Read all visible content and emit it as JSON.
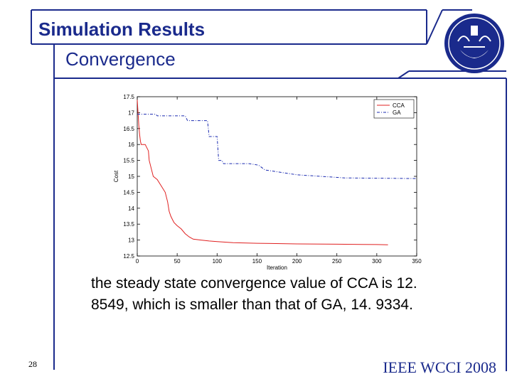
{
  "slide": {
    "title": "Simulation Results",
    "subtitle": "Convergence",
    "caption": "the steady state convergence value of CCA is 12. 8549, which is smaller than that of GA, 14. 9334.",
    "slide_number": "28",
    "footer": "IEEE WCCI 2008",
    "logo_icon": "university-of-tehran-logo-icon"
  },
  "colors": {
    "frame": "#1a2a8c",
    "cca": "#e02020",
    "ga": "#1a2ab0"
  },
  "chart_data": {
    "type": "line",
    "xlabel": "Iteration",
    "ylabel": "Cost",
    "xlim": [
      0,
      350
    ],
    "ylim": [
      12.5,
      17.5
    ],
    "xticks": [
      "0",
      "50",
      "100",
      "150",
      "200",
      "250",
      "300",
      "350"
    ],
    "yticks": [
      "12.5",
      "13",
      "13.5",
      "14",
      "14.5",
      "15",
      "15.5",
      "16",
      "16.5",
      "17",
      "17.5"
    ],
    "legend_position": "top-right",
    "grid": false,
    "series": [
      {
        "name": "CCA",
        "style": "solid",
        "color": "#e02020",
        "x": [
          0,
          1,
          2,
          3,
          4,
          5,
          10,
          14,
          15,
          20,
          25,
          30,
          35,
          38,
          40,
          42,
          44,
          46,
          50,
          55,
          60,
          65,
          70,
          80,
          90,
          100,
          120,
          150,
          200,
          250,
          300,
          314
        ],
        "y": [
          17.4,
          17.0,
          16.6,
          16.3,
          16.1,
          16.0,
          16.0,
          15.8,
          15.5,
          15.0,
          14.9,
          14.7,
          14.5,
          14.2,
          13.9,
          13.75,
          13.65,
          13.55,
          13.45,
          13.35,
          13.2,
          13.1,
          13.03,
          13.0,
          12.97,
          12.95,
          12.92,
          12.9,
          12.88,
          12.87,
          12.86,
          12.85
        ]
      },
      {
        "name": "GA",
        "style": "dash-dot",
        "color": "#1a2ab0",
        "x": [
          0,
          23,
          25,
          60,
          63,
          88,
          90,
          100,
          102,
          106,
          108,
          140,
          152,
          160,
          200,
          260,
          350
        ],
        "y": [
          16.95,
          16.95,
          16.9,
          16.9,
          16.75,
          16.75,
          16.25,
          16.25,
          15.5,
          15.5,
          15.4,
          15.4,
          15.35,
          15.2,
          15.05,
          14.95,
          14.93
        ]
      }
    ]
  }
}
